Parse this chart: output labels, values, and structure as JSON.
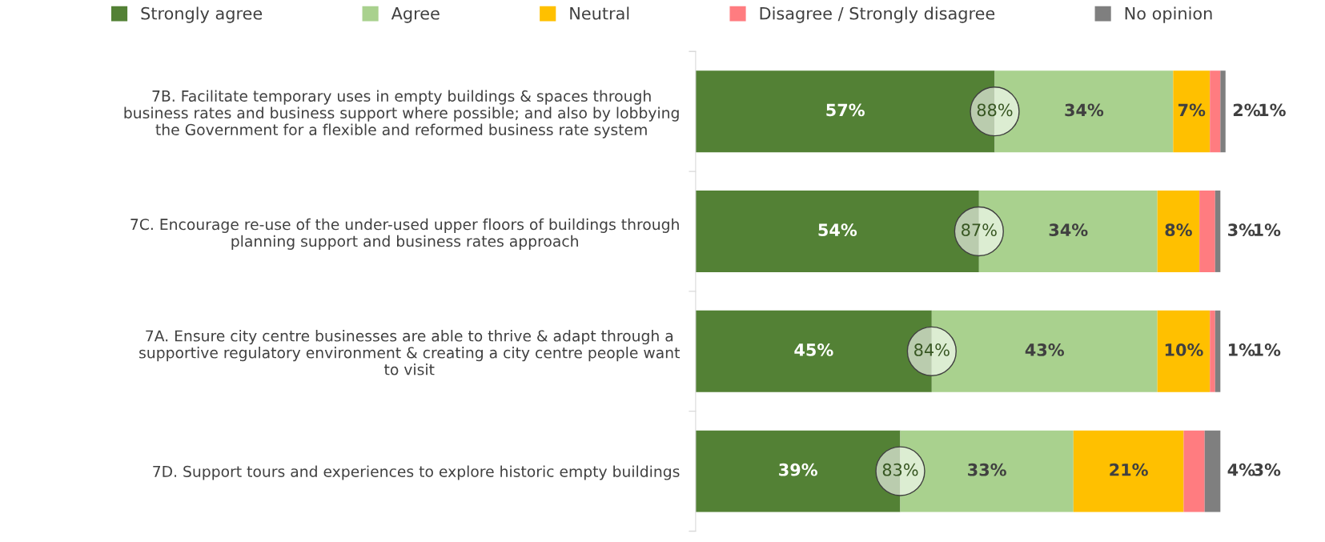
{
  "chart_data": {
    "type": "bar",
    "orientation": "horizontal",
    "stacked": true,
    "legend": "top",
    "grid": false,
    "categories": [
      "7B. Facilitate temporary uses in empty buildings & spaces through\nbusiness rates and business support where possible; and also by lobbying\nthe Government for a flexible and reformed business rate system",
      "7C. Encourage re-use of the under-used upper floors of buildings through\nplanning support and business rates approach",
      "7A. Ensure city centre businesses are able to thrive & adapt through a\nsupportive regulatory environment & creating a city centre people want\nto visit",
      "7D. Support tours and experiences to explore historic empty buildings"
    ],
    "series": [
      {
        "name": "Strongly agree",
        "color": "#538135",
        "values": [
          57,
          54,
          45,
          39
        ],
        "value_labels": [
          "57%",
          "54%",
          "45%",
          "39%"
        ]
      },
      {
        "name": "Agree",
        "color": "#a9d18e",
        "values": [
          34,
          34,
          43,
          33
        ],
        "value_labels": [
          "34%",
          "34%",
          "43%",
          "33%"
        ]
      },
      {
        "name": "Neutral",
        "color": "#ffc000",
        "values": [
          7,
          8,
          10,
          21
        ],
        "value_labels": [
          "7%",
          "8%",
          "10%",
          "21%"
        ]
      },
      {
        "name": "Disagree / Strongly disagree",
        "color": "#ff7c80",
        "values": [
          2,
          3,
          1,
          4
        ],
        "value_labels": [
          "2%",
          "3%",
          "1%",
          "4%"
        ]
      },
      {
        "name": "No opinion",
        "color": "#7f7f7f",
        "values": [
          1,
          1,
          1,
          3
        ],
        "value_labels": [
          "1%",
          "1%",
          "1%",
          "3%"
        ]
      }
    ],
    "annotations": [
      {
        "text": "88%",
        "x": 57,
        "y": "7B. Facilitate temporary uses in empty buildings & spaces through\nbusiness rates and business support where possible; and also by lobbying\nthe Government for a flexible and reformed business rate system"
      },
      {
        "text": "87%",
        "x": 54,
        "y": "7C. Encourage re-use of the under-used upper floors of buildings through\nplanning support and business rates approach"
      },
      {
        "text": "84%",
        "x": 45,
        "y": "7A. Ensure city centre businesses are able to thrive & adapt through a\nsupportive regulatory environment & creating a city centre people want\nto visit"
      },
      {
        "text": "83%",
        "x": 39,
        "y": "7D. Support tours and experiences to explore historic empty buildings"
      }
    ]
  }
}
